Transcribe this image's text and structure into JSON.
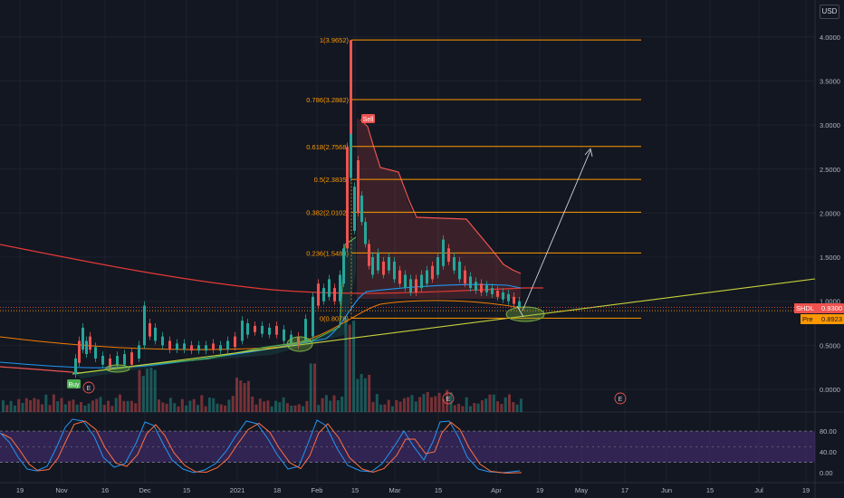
{
  "currency": "USD",
  "price_scale": [
    "4.0000",
    "3.5000",
    "3.0000",
    "2.5000",
    "2.0000",
    "1.5000",
    "1.0000",
    "0.5000",
    "0.0000"
  ],
  "last_price": {
    "symbol": "SHDL",
    "value": "0.9300",
    "color": "#ef5350"
  },
  "pre_price": {
    "label": "Pre",
    "value": "0.8923",
    "color": "#ff9800"
  },
  "colors": {
    "background": "#131722",
    "up": "#26a69a",
    "down": "#ef5350",
    "fib": "#ff9800",
    "ma_long": "#e53935",
    "ma_mid": "#2196f3",
    "trend": "#c6d23a",
    "stoch_bg": "#4a2f7a",
    "stoch_k": "#2196f3",
    "stoch_d": "#ff7043",
    "ellipse": "#7cb342"
  },
  "signals": {
    "buy": "Buy",
    "sell": "Sell"
  },
  "earnings_marker": "E",
  "stoch_scale": [
    "80.00",
    "40.00",
    "0.00"
  ],
  "x_axis_labels": [
    "19",
    "Nov",
    "16",
    "Dec",
    "15",
    "2021",
    "18",
    "Feb",
    "15",
    "Mar",
    "15",
    "Apr",
    "19",
    "May",
    "17",
    "Jun",
    "15",
    "Jul",
    "19"
  ],
  "chart_data": {
    "type": "candlestick",
    "y_range": [
      -0.25,
      4.4
    ],
    "fib_levels": [
      {
        "label": "1(3.9652)",
        "value": 3.9652
      },
      {
        "label": "0.786(3.2882)",
        "value": 3.2882
      },
      {
        "label": "0.618(2.7568)",
        "value": 2.7568
      },
      {
        "label": "0.5(2.3835)",
        "value": 2.3835
      },
      {
        "label": "0.382(2.0102)",
        "value": 2.0102
      },
      {
        "label": "0.236(1.5483)",
        "value": 1.5483
      },
      {
        "label": "0(0.8078)",
        "value": 0.8078
      }
    ],
    "stoch_range": [
      0,
      100
    ]
  }
}
